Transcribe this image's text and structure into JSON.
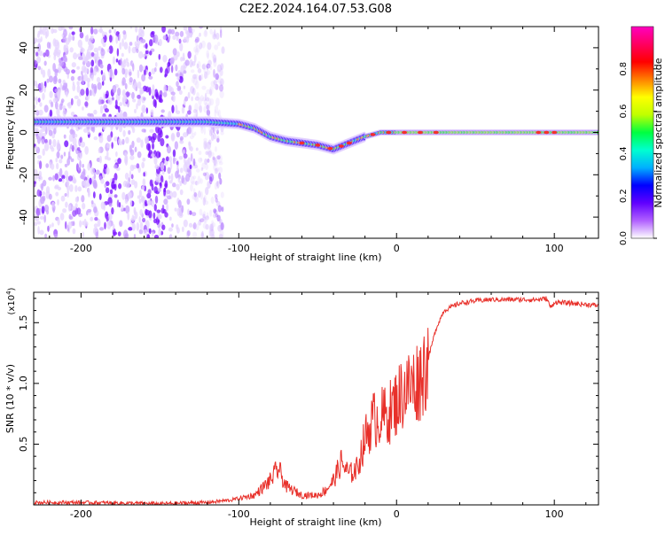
{
  "title": "C2E2.2024.164.07.53.G08",
  "chart_data": [
    {
      "type": "heatmap",
      "xlabel": "Height of straight line (km)",
      "ylabel": "Frequency (Hz)",
      "xlim": [
        -230,
        128
      ],
      "ylim": [
        -50,
        50
      ],
      "xticks": [
        -200,
        -100,
        0,
        100
      ],
      "yticks": [
        -40,
        -20,
        0,
        20,
        40
      ],
      "colorbar": {
        "label": "Normalized spectral amplitude",
        "range": [
          0,
          1
        ],
        "ticks": [
          "0.0",
          "0.2",
          "0.4",
          "0.6",
          "0.8"
        ],
        "tick_values": [
          0,
          0.2,
          0.4,
          0.6,
          0.8
        ],
        "colormap": [
          "#ffffff",
          "#b060ff",
          "#6000ff",
          "#0000ff",
          "#00b0ff",
          "#00ffd0",
          "#00ff40",
          "#c0ff00",
          "#ffff00",
          "#ff8000",
          "#ff0000",
          "#ff0060",
          "#ff00c0"
        ]
      },
      "ridge": {
        "x": [
          -230,
          -200,
          -150,
          -120,
          -100,
          -90,
          -80,
          -70,
          -60,
          -50,
          -40,
          -30,
          -20,
          -10,
          0,
          20,
          50,
          80,
          100,
          128
        ],
        "y": [
          5,
          5,
          5,
          5,
          4,
          2,
          -2,
          -4,
          -5,
          -6,
          -8,
          -5,
          -2,
          0,
          0,
          0,
          0,
          0,
          0,
          0
        ]
      },
      "grid": false
    },
    {
      "type": "line",
      "xlabel": "Height of straight line (km)",
      "ylabel": "SNR (10 * v/v)",
      "multiplier": "(x10",
      "multiplier_exp": "4",
      "multiplier_close": ")",
      "xlim": [
        -230,
        128
      ],
      "ylim": [
        0,
        1.75
      ],
      "xticks": [
        -200,
        -100,
        0,
        100
      ],
      "yticks": [
        0.5,
        1.0,
        1.5
      ],
      "ytick_labels": [
        "0.5",
        "1.0",
        "1.5"
      ],
      "color": "#e8302a",
      "series": [
        {
          "x": [
            -230,
            -200,
            -150,
            -120,
            -105,
            -90,
            -80,
            -75,
            -70,
            -60,
            -50,
            -45,
            -40,
            -35,
            -30,
            -25,
            -20,
            -15,
            -10,
            -5,
            0,
            5,
            10,
            15,
            20,
            25,
            30,
            40,
            50,
            60,
            70,
            80,
            90,
            95,
            98,
            100,
            110,
            120,
            128
          ],
          "y": [
            0.02,
            0.02,
            0.01,
            0.02,
            0.04,
            0.08,
            0.2,
            0.3,
            0.15,
            0.08,
            0.08,
            0.12,
            0.2,
            0.35,
            0.25,
            0.3,
            0.55,
            0.7,
            0.72,
            0.75,
            0.85,
            0.95,
            0.98,
            1.05,
            1.2,
            1.45,
            1.6,
            1.66,
            1.68,
            1.69,
            1.69,
            1.69,
            1.69,
            1.7,
            1.62,
            1.67,
            1.66,
            1.65,
            1.64
          ]
        }
      ],
      "grid": false
    }
  ]
}
